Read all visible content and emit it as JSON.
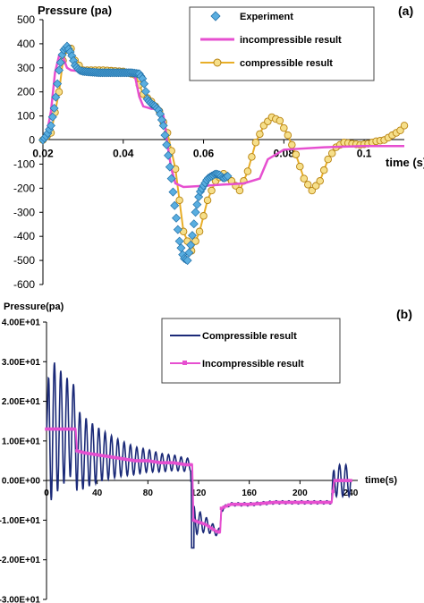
{
  "chart_data": [
    {
      "panel_label": "(a)",
      "type": "line",
      "xlabel": "time (s)",
      "ylabel": "Pressure (pa)",
      "xlim": [
        0.02,
        0.11
      ],
      "ylim": [
        -600,
        500
      ],
      "x_ticks": [
        0.02,
        0.04,
        0.06,
        0.08,
        0.1
      ],
      "x_tick_labels": [
        "0.02",
        "0.04",
        "0.06",
        "0.08",
        "0.1"
      ],
      "y_ticks": [
        -600,
        -500,
        -400,
        -300,
        -200,
        -100,
        0,
        100,
        200,
        300,
        400,
        500
      ],
      "legend_position": "top-right",
      "series": [
        {
          "name": "Experiment",
          "marker": "diamond",
          "color": "#5aaee0",
          "x": [
            0.02,
            0.021,
            0.022,
            0.023,
            0.024,
            0.025,
            0.026,
            0.027,
            0.028,
            0.029,
            0.03,
            0.032,
            0.034,
            0.036,
            0.038,
            0.04,
            0.042,
            0.044,
            0.045,
            0.046,
            0.047,
            0.048,
            0.049,
            0.05,
            0.051,
            0.052,
            0.053,
            0.054,
            0.055,
            0.056,
            0.057,
            0.058,
            0.059,
            0.06,
            0.061,
            0.062,
            0.063,
            0.064,
            0.065,
            0.066
          ],
          "y": [
            0,
            20,
            60,
            150,
            290,
            370,
            390,
            360,
            310,
            290,
            285,
            282,
            280,
            280,
            280,
            280,
            280,
            275,
            250,
            170,
            150,
            140,
            120,
            60,
            -40,
            -160,
            -300,
            -420,
            -490,
            -500,
            -420,
            -300,
            -220,
            -190,
            -160,
            -150,
            -140,
            -145,
            -160,
            -150
          ]
        },
        {
          "name": "incompressible result",
          "marker": "none",
          "color": "#e64fd0",
          "x": [
            0.02,
            0.021,
            0.022,
            0.023,
            0.024,
            0.025,
            0.026,
            0.027,
            0.03,
            0.035,
            0.04,
            0.042,
            0.043,
            0.044,
            0.045,
            0.046,
            0.047,
            0.048,
            0.049,
            0.05,
            0.0505,
            0.051,
            0.052,
            0.053,
            0.055,
            0.06,
            0.065,
            0.07,
            0.074,
            0.076,
            0.08,
            0.09,
            0.1,
            0.11
          ],
          "y": [
            0,
            30,
            120,
            280,
            350,
            345,
            300,
            290,
            285,
            280,
            278,
            275,
            260,
            180,
            140,
            135,
            130,
            130,
            125,
            100,
            50,
            -20,
            -120,
            -180,
            -195,
            -190,
            -185,
            -180,
            -160,
            -80,
            -40,
            -30,
            -25,
            -25
          ]
        },
        {
          "name": "compressible result",
          "marker": "circle",
          "color": "#e8ae28",
          "x": [
            0.02,
            0.022,
            0.024,
            0.025,
            0.026,
            0.027,
            0.028,
            0.03,
            0.035,
            0.04,
            0.043,
            0.045,
            0.047,
            0.049,
            0.051,
            0.053,
            0.055,
            0.057,
            0.059,
            0.061,
            0.063,
            0.065,
            0.067,
            0.069,
            0.071,
            0.073,
            0.075,
            0.077,
            0.079,
            0.081,
            0.083,
            0.085,
            0.087,
            0.089,
            0.091,
            0.093,
            0.095,
            0.097,
            0.099,
            0.101,
            0.103,
            0.105,
            0.107,
            0.109,
            0.11
          ],
          "y": [
            0,
            30,
            200,
            330,
            375,
            380,
            330,
            290,
            290,
            285,
            270,
            190,
            160,
            120,
            30,
            -120,
            -380,
            -460,
            -380,
            -250,
            -170,
            -140,
            -170,
            -210,
            -130,
            -10,
            60,
            95,
            80,
            20,
            -60,
            -160,
            -210,
            -170,
            -80,
            -30,
            -10,
            -15,
            -20,
            -15,
            -5,
            0,
            20,
            40,
            60
          ]
        }
      ]
    },
    {
      "panel_label": "(b)",
      "type": "line",
      "xlabel": "time(s)",
      "ylabel": "Pressure(pa)",
      "xlim": [
        0,
        240
      ],
      "ylim": [
        -30,
        40
      ],
      "x_ticks": [
        0,
        40,
        80,
        120,
        160,
        200,
        240
      ],
      "y_ticks": [
        -30,
        -20,
        -10,
        0,
        10,
        20,
        30,
        40
      ],
      "y_tick_labels": [
        "-3.00E+01",
        "-2.00E+01",
        "-1.00E+01",
        "0.00E+00",
        "1.00E+01",
        "2.00E+01",
        "3.00E+01",
        "4.00E+01"
      ],
      "legend_position": "top-right",
      "series": [
        {
          "name": "Compressible result",
          "marker": "none",
          "color": "#1b2a78",
          "oscillation": "damped oscillation about the incompressible result, period about 5 s; amplitude about 18 at t=0, decaying to about 1 near t=115; amplitude about 4 in 115-140 s; settles near -5 from 140 to 225 s; amplitude about 4 from 225 to 240 s",
          "x": [
            0,
            6,
            12,
            18,
            24,
            40,
            60,
            80,
            100,
            114,
            115,
            117,
            120,
            130,
            136,
            140,
            160,
            180,
            200,
            225,
            230,
            240
          ],
          "y": [
            14,
            16,
            12,
            8,
            7,
            6,
            5,
            4.5,
            4,
            3.5,
            -10,
            -17,
            -9,
            -10,
            -13,
            -7,
            -5.5,
            -5.5,
            -5.5,
            -5.5,
            1,
            2
          ]
        },
        {
          "name": "Incompressible result",
          "marker": "square",
          "color": "#e64fd0",
          "x": [
            0,
            4,
            8,
            12,
            16,
            20,
            23,
            24,
            30,
            40,
            50,
            60,
            70,
            80,
            90,
            100,
            110,
            115,
            116,
            120,
            125,
            130,
            135,
            137,
            138,
            145,
            160,
            180,
            200,
            220,
            225,
            227,
            230,
            235,
            240
          ],
          "y": [
            13,
            13,
            13,
            13,
            13,
            13,
            13,
            7.5,
            7,
            6.5,
            6,
            5.5,
            5,
            5,
            4.5,
            4.5,
            4,
            4,
            -10,
            -10.5,
            -11,
            -12,
            -13,
            -13,
            -7,
            -6,
            -6,
            -5.5,
            -5.5,
            -5.5,
            -5.5,
            0,
            0,
            0,
            0
          ]
        }
      ]
    }
  ]
}
